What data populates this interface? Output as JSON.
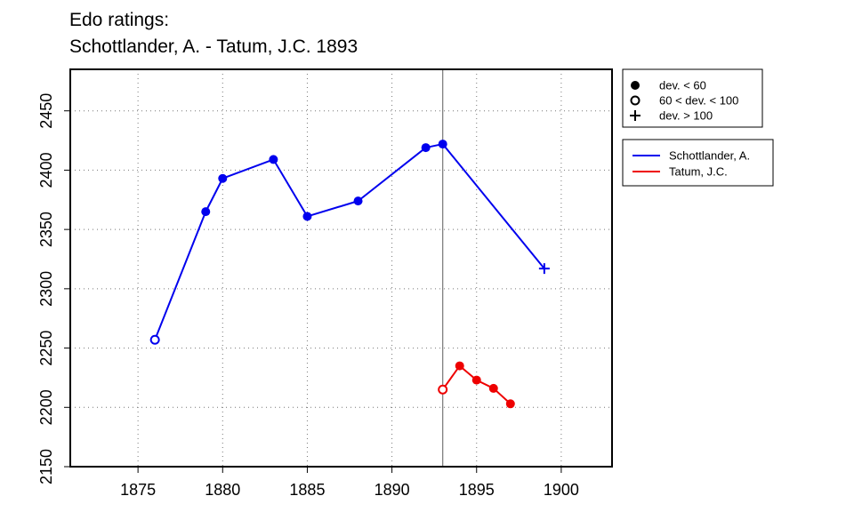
{
  "chart_data": {
    "type": "line",
    "title": "Edo ratings:",
    "subtitle": "Schottlander, A. - Tatum, J.C. 1893",
    "xlabel": "",
    "ylabel": "",
    "xlim": [
      1871,
      1903
    ],
    "ylim": [
      2150,
      2485
    ],
    "x_ticks": [
      1875,
      1880,
      1885,
      1890,
      1895,
      1900
    ],
    "y_ticks": [
      2150,
      2200,
      2250,
      2300,
      2350,
      2400,
      2450
    ],
    "grid": true,
    "grid_style": "dotted",
    "reference_line_x": 1893,
    "marker_legend": [
      {
        "marker": "filled-circle",
        "label": "dev. < 60"
      },
      {
        "marker": "open-circle",
        "label": "60 < dev. < 100"
      },
      {
        "marker": "plus",
        "label": "dev. > 100"
      }
    ],
    "series": [
      {
        "name": "Schottlander, A.",
        "color": "#0000ee",
        "points": [
          {
            "x": 1876,
            "y": 2257,
            "marker": "open-circle"
          },
          {
            "x": 1879,
            "y": 2365,
            "marker": "filled-circle"
          },
          {
            "x": 1880,
            "y": 2393,
            "marker": "filled-circle"
          },
          {
            "x": 1883,
            "y": 2409,
            "marker": "filled-circle"
          },
          {
            "x": 1885,
            "y": 2361,
            "marker": "filled-circle"
          },
          {
            "x": 1888,
            "y": 2374,
            "marker": "filled-circle"
          },
          {
            "x": 1892,
            "y": 2419,
            "marker": "filled-circle"
          },
          {
            "x": 1893,
            "y": 2422,
            "marker": "filled-circle"
          },
          {
            "x": 1899,
            "y": 2317,
            "marker": "plus"
          }
        ]
      },
      {
        "name": "Tatum, J.C.",
        "color": "#ee0000",
        "points": [
          {
            "x": 1893,
            "y": 2215,
            "marker": "open-circle"
          },
          {
            "x": 1894,
            "y": 2235,
            "marker": "filled-circle"
          },
          {
            "x": 1895,
            "y": 2223,
            "marker": "filled-circle"
          },
          {
            "x": 1896,
            "y": 2216,
            "marker": "filled-circle"
          },
          {
            "x": 1897,
            "y": 2203,
            "marker": "filled-circle"
          }
        ]
      }
    ]
  }
}
